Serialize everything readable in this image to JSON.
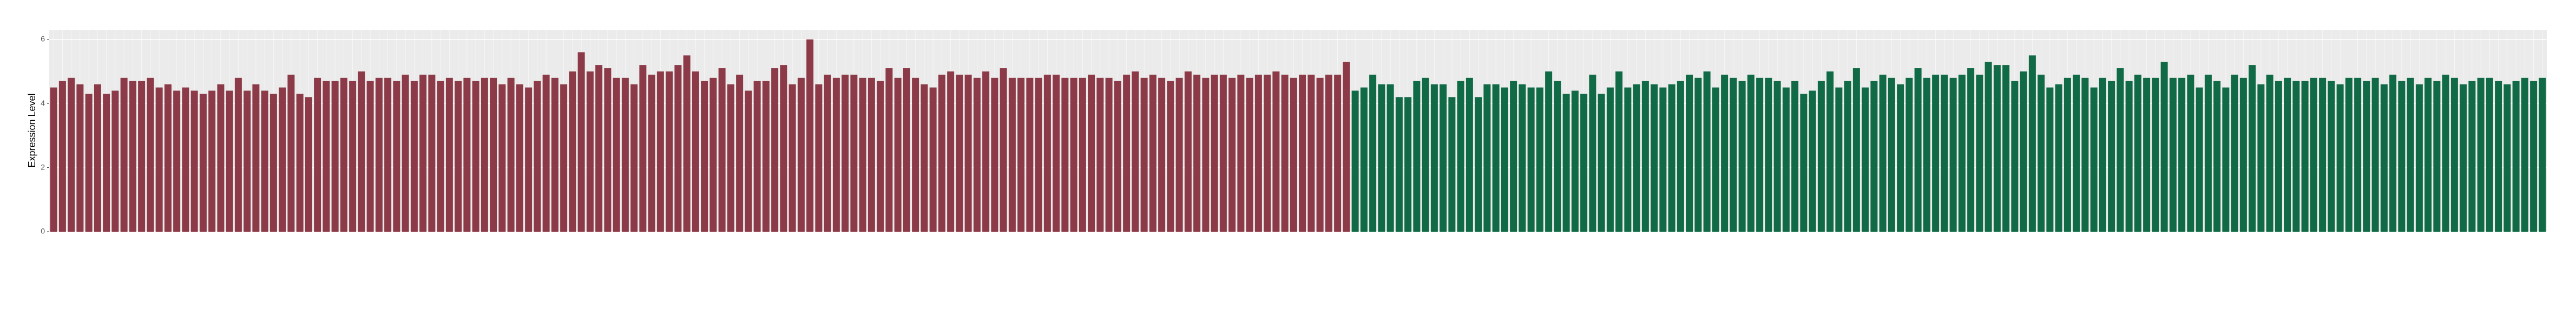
{
  "chart_data": {
    "type": "bar",
    "y_label": "Expression Level",
    "ylim": [
      0,
      6.3
    ],
    "yticks": [
      0,
      2,
      4,
      6
    ],
    "grid": true,
    "series": [
      {
        "color": "#8c3a47",
        "categories": [
          null,
          null,
          null,
          null,
          null,
          null,
          null,
          null,
          null,
          null,
          null,
          null,
          null,
          null,
          null,
          null,
          null,
          null,
          null,
          null,
          null,
          null,
          null,
          null,
          null,
          null,
          null,
          null,
          null,
          null,
          null,
          null,
          null,
          null,
          null,
          null,
          null,
          null,
          null,
          null,
          null,
          null,
          null,
          null,
          null,
          null,
          null,
          null,
          null,
          null,
          null,
          null,
          null,
          null,
          null,
          null,
          null,
          null,
          null,
          null,
          null,
          null,
          null,
          null,
          null,
          null,
          null,
          null,
          null,
          null,
          null,
          null,
          null,
          null,
          null,
          null,
          null,
          null,
          null,
          null,
          null,
          null,
          null,
          null,
          null,
          null,
          null,
          null,
          null,
          null,
          null,
          null,
          null,
          null,
          null,
          null,
          null,
          null,
          null,
          null,
          null,
          null,
          null,
          null,
          null,
          null,
          null,
          null,
          null,
          null,
          null,
          null,
          null,
          null,
          null,
          null,
          null,
          null,
          null,
          null,
          null,
          null,
          null,
          null,
          null,
          null,
          null,
          null,
          null,
          null,
          null,
          null,
          null,
          null,
          null,
          null,
          null,
          null,
          null,
          null,
          null,
          null,
          null,
          null,
          null,
          null,
          null,
          null
        ],
        "values": [
          4.5,
          4.7,
          4.8,
          4.6,
          4.3,
          4.6,
          4.3,
          4.4,
          4.8,
          4.7,
          4.7,
          4.8,
          4.5,
          4.6,
          4.4,
          4.5,
          4.4,
          4.3,
          4.4,
          4.6,
          4.4,
          4.8,
          4.4,
          4.6,
          4.4,
          4.3,
          4.5,
          4.9,
          4.3,
          4.2,
          4.8,
          4.7,
          4.7,
          4.8,
          4.7,
          5.0,
          4.7,
          4.8,
          4.8,
          4.7,
          4.9,
          4.7,
          4.9,
          4.9,
          4.7,
          4.8,
          4.7,
          4.8,
          4.7,
          4.8,
          4.8,
          4.6,
          4.8,
          4.6,
          4.5,
          4.7,
          4.9,
          4.8,
          4.6,
          5.0,
          5.6,
          5.0,
          5.2,
          5.1,
          4.8,
          4.8,
          4.6,
          5.2,
          4.9,
          5.0,
          5.0,
          5.2,
          5.5,
          5.0,
          4.7,
          4.8,
          5.1,
          4.6,
          4.9,
          4.4,
          4.7,
          4.7,
          5.1,
          5.2,
          4.6,
          4.8,
          6.0,
          4.6,
          4.9,
          4.8,
          4.9,
          4.9,
          4.8,
          4.8,
          4.7,
          5.1,
          4.8,
          5.1,
          4.8,
          4.6,
          4.5,
          4.9,
          5.0,
          4.9,
          4.9,
          4.8,
          5.0,
          4.8,
          5.1,
          4.8,
          4.8,
          4.8,
          4.8,
          4.9,
          4.9,
          4.8,
          4.8,
          4.8,
          4.9,
          4.8,
          4.8,
          4.7,
          4.9,
          5.0,
          4.8,
          4.9,
          4.8,
          4.7,
          4.8,
          5.0,
          4.9,
          4.8,
          4.9,
          4.9,
          4.8,
          4.9,
          4.8,
          4.9,
          4.9,
          5.0,
          4.9,
          4.8,
          4.9,
          4.9,
          4.8,
          4.9,
          4.9,
          5.3
        ]
      },
      {
        "color": "#0f6a45",
        "categories": [
          null,
          null,
          null,
          null,
          null,
          null,
          null,
          null,
          null,
          null,
          null,
          null,
          null,
          null,
          null,
          null,
          null,
          null,
          null,
          null,
          null,
          null,
          null,
          null,
          null,
          null,
          null,
          null,
          null,
          null,
          null,
          null,
          null,
          null,
          null,
          null,
          null,
          null,
          null,
          null,
          null,
          null,
          null,
          null,
          null,
          null,
          null,
          null,
          null,
          null,
          null,
          null,
          null,
          null,
          null,
          null,
          null,
          null,
          null,
          null,
          null,
          null,
          null,
          null,
          null,
          null,
          null,
          null,
          null,
          null,
          null,
          null,
          null,
          null,
          null,
          null,
          null,
          null,
          null,
          null,
          null,
          null,
          null,
          null,
          null,
          null,
          null,
          null,
          null,
          null,
          null,
          null,
          null,
          null,
          null,
          null,
          null,
          null,
          null,
          null,
          null,
          null,
          null,
          null,
          null,
          null,
          null,
          null,
          null,
          null,
          null,
          null,
          null,
          null,
          null,
          null,
          null,
          null,
          null,
          null,
          null,
          null,
          null,
          null,
          null,
          null,
          null,
          null,
          null,
          null,
          null,
          null,
          null,
          null,
          null,
          null
        ],
        "values": [
          4.4,
          4.5,
          4.9,
          4.6,
          4.6,
          4.2,
          4.2,
          4.7,
          4.8,
          4.6,
          4.6,
          4.2,
          4.7,
          4.8,
          4.2,
          4.6,
          4.6,
          4.5,
          4.7,
          4.6,
          4.5,
          4.5,
          5.0,
          4.7,
          4.3,
          4.4,
          4.3,
          4.9,
          4.3,
          4.5,
          5.0,
          4.5,
          4.6,
          4.7,
          4.6,
          4.5,
          4.6,
          4.7,
          4.9,
          4.8,
          5.0,
          4.5,
          4.9,
          4.8,
          4.7,
          4.9,
          4.8,
          4.8,
          4.7,
          4.5,
          4.7,
          4.3,
          4.4,
          4.7,
          5.0,
          4.5,
          4.7,
          5.1,
          4.5,
          4.7,
          4.9,
          4.8,
          4.6,
          4.8,
          5.1,
          4.8,
          4.9,
          4.9,
          4.8,
          4.9,
          5.1,
          4.9,
          5.3,
          5.2,
          5.2,
          4.7,
          5.0,
          5.5,
          4.9,
          4.5,
          4.6,
          4.8,
          4.9,
          4.8,
          4.5,
          4.8,
          4.7,
          5.1,
          4.7,
          4.9,
          4.8,
          4.8,
          5.3,
          4.8,
          4.8,
          4.9,
          4.5,
          4.9,
          4.7,
          4.5,
          4.9,
          4.8,
          5.2,
          4.6,
          4.9,
          4.7,
          4.8,
          4.7,
          4.7,
          4.8,
          4.8,
          4.7,
          4.6,
          4.8,
          4.8,
          4.7,
          4.8,
          4.6,
          4.9,
          4.7,
          4.8,
          4.6,
          4.8,
          4.7,
          4.9,
          4.8,
          4.6,
          4.7,
          4.8,
          4.8,
          4.7,
          4.6,
          4.7,
          4.8,
          4.7,
          4.8
        ]
      }
    ]
  }
}
